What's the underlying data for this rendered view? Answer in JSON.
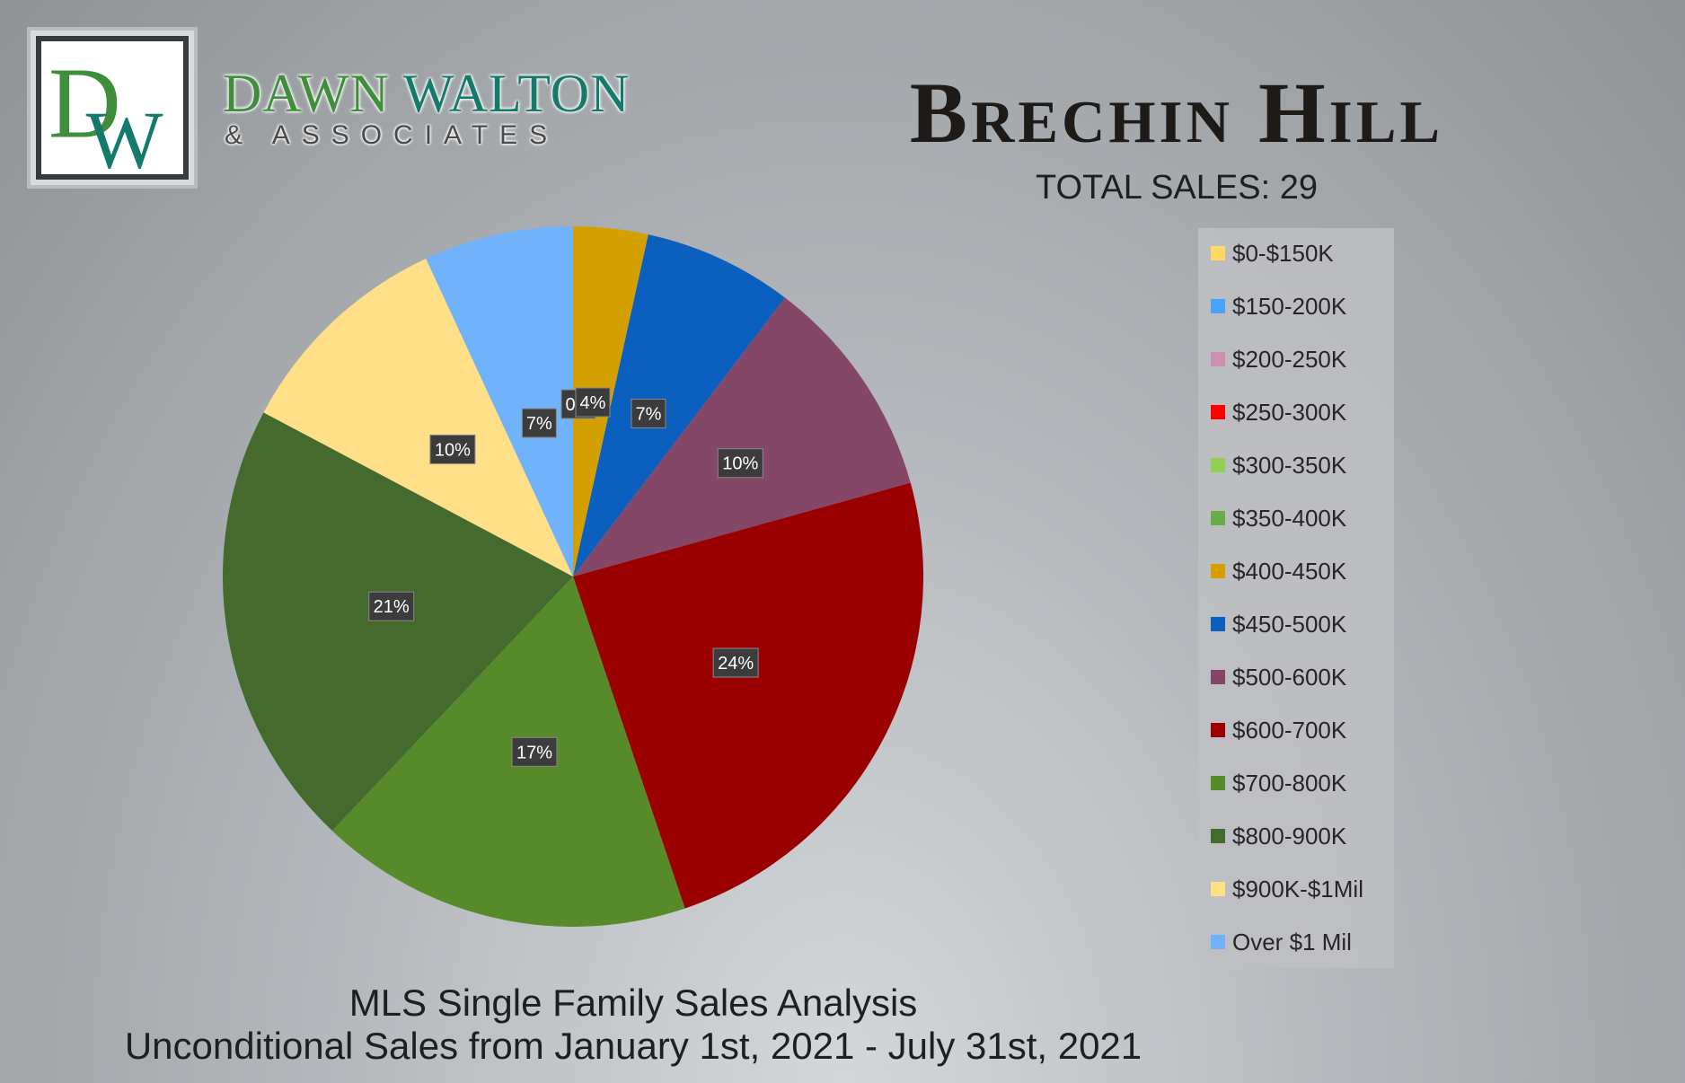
{
  "brand": {
    "monogram": "DW",
    "name_part1": "DAWN ",
    "name_part2": "WALTON",
    "tagline": "& ASSOCIATES",
    "color_green": "#3f8e3c",
    "color_teal": "#147a6c"
  },
  "header": {
    "title": "Brechin Hill",
    "total_sales_label": "TOTAL SALES: 29"
  },
  "footer": {
    "line1": "MLS Single Family Sales Analysis",
    "line2": "Unconditional Sales from January 1st, 2021 - July 31st, 2021"
  },
  "legend": {
    "items": [
      {
        "label": "$0-$150K",
        "color": "#ffd966"
      },
      {
        "label": "$150-200K",
        "color": "#46a3f5"
      },
      {
        "label": "$200-250K",
        "color": "#cc8fb0"
      },
      {
        "label": "$250-300K",
        "color": "#ff0000"
      },
      {
        "label": "$300-350K",
        "color": "#92d050"
      },
      {
        "label": "$350-400K",
        "color": "#6aac45"
      },
      {
        "label": "$400-450K",
        "color": "#d4a000"
      },
      {
        "label": "$450-500K",
        "color": "#0b5fbe"
      },
      {
        "label": "$500-600K",
        "color": "#844768"
      },
      {
        "label": "$600-700K",
        "color": "#9b0000"
      },
      {
        "label": "$700-800K",
        "color": "#578a28"
      },
      {
        "label": "$800-900K",
        "color": "#446a2e"
      },
      {
        "label": "$900K-$1Mil",
        "color": "#ffdf87"
      },
      {
        "label": "Over $1 Mil",
        "color": "#70b3fb"
      }
    ]
  },
  "chart_data": {
    "type": "pie",
    "title": "Brechin Hill",
    "categories": [
      "$0-$150K",
      "$150-200K",
      "$200-250K",
      "$250-300K",
      "$300-350K",
      "$350-400K",
      "$400-450K",
      "$450-500K",
      "$500-600K",
      "$600-700K",
      "$700-800K",
      "$800-900K",
      "$900K-$1Mil",
      "Over $1 Mil"
    ],
    "values": [
      0,
      0,
      0,
      0,
      0,
      0,
      1,
      2,
      3,
      7,
      5,
      6,
      3,
      2
    ],
    "labels": [
      "0%",
      "0%",
      "0%",
      "0%",
      "0%",
      "0%",
      "4%",
      "7%",
      "10%",
      "24%",
      "17%",
      "21%",
      "10%",
      "7%"
    ],
    "colors": [
      "#ffd966",
      "#46a3f5",
      "#cc8fb0",
      "#ff0000",
      "#92d050",
      "#6aac45",
      "#d4a000",
      "#0b5fbe",
      "#844768",
      "#9b0000",
      "#578a28",
      "#446a2e",
      "#ffdf87",
      "#70b3fb"
    ],
    "legend_position": "right"
  }
}
